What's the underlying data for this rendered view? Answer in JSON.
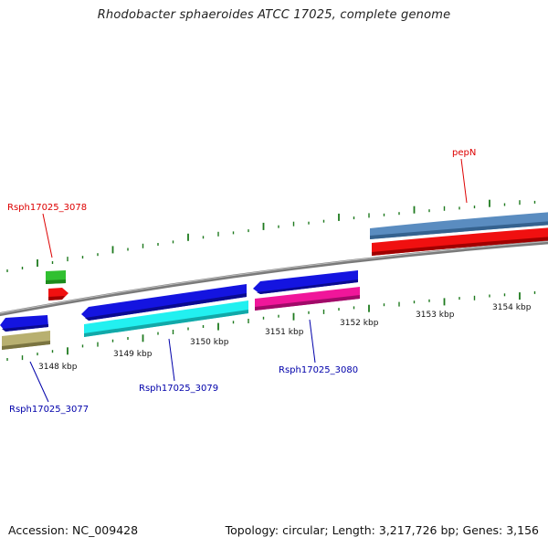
{
  "title": "Rhodobacter sphaeroides ATCC 17025, complete genome",
  "footer": {
    "accession": "Accession: NC_009428",
    "topology": "Topology: circular; Length: 3,217,726 bp; Genes: 3,156"
  },
  "scale": {
    "labels": [
      "3148 kbp",
      "3149 kbp",
      "3150 kbp",
      "3151 kbp",
      "3152 kbp",
      "3153 kbp",
      "3154 kbp"
    ]
  },
  "genes": [
    {
      "name": "Rsph17025_3078",
      "color": "#dd0000"
    },
    {
      "name": "pepN",
      "color": "#dd0000"
    },
    {
      "name": "Rsph17025_3077",
      "color": "#0000aa"
    },
    {
      "name": "Rsph17025_3079",
      "color": "#0000aa"
    },
    {
      "name": "Rsph17025_3080",
      "color": "#0000aa"
    }
  ],
  "colors": {
    "backbone": "#7a7a7a",
    "tick": "#1e7a1e",
    "blue": "#1414e0",
    "cyan": "#22f0f0",
    "magenta": "#f0169a",
    "olive": "#b8b070",
    "steelblue": "#5a8cc0",
    "red": "#f01010",
    "green": "#30c030"
  }
}
